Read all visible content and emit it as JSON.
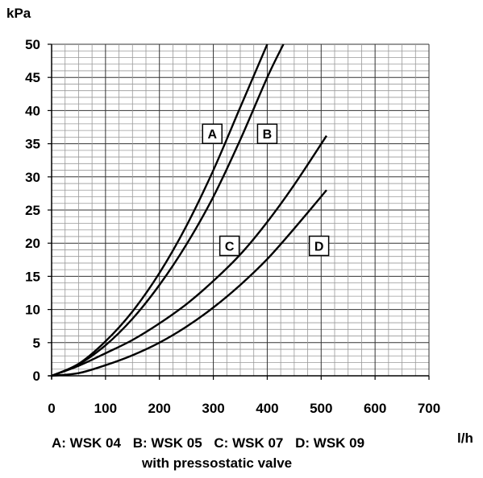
{
  "chart_data": {
    "type": "line",
    "ylabel": "kPa",
    "xlabel": "l/h",
    "xlim": [
      0,
      700
    ],
    "ylim": [
      0,
      50
    ],
    "x_ticks": [
      "0",
      "100",
      "200",
      "300",
      "400",
      "500",
      "600",
      "700"
    ],
    "y_ticks": [
      "0",
      "5",
      "10",
      "15",
      "20",
      "25",
      "30",
      "35",
      "40",
      "45",
      "50"
    ],
    "grid": true,
    "series": [
      {
        "name": "A",
        "x": [
          0,
          50,
          100,
          150,
          200,
          250,
          300,
          350,
          400
        ],
        "y": [
          0,
          1.8,
          5.2,
          9.7,
          15.5,
          22.6,
          31,
          40.5,
          50
        ]
      },
      {
        "name": "B",
        "x": [
          0,
          50,
          100,
          150,
          200,
          250,
          300,
          350,
          400,
          430
        ],
        "y": [
          0,
          1.7,
          4.6,
          8.6,
          13.7,
          19.8,
          27,
          35.6,
          45,
          50
        ]
      },
      {
        "name": "C",
        "x": [
          0,
          50,
          100,
          150,
          200,
          250,
          300,
          350,
          400,
          450,
          510
        ],
        "y": [
          0,
          1.5,
          3.4,
          5.4,
          7.9,
          10.8,
          14.3,
          18.3,
          23.2,
          28.8,
          36.2
        ]
      },
      {
        "name": "D",
        "x": [
          0,
          50,
          100,
          150,
          200,
          250,
          300,
          350,
          400,
          450,
          510
        ],
        "y": [
          0,
          0.4,
          1.6,
          3.1,
          5,
          7.4,
          10.3,
          13.7,
          17.6,
          22.2,
          28
        ]
      }
    ],
    "box_labels": [
      {
        "text": "A",
        "x": 298,
        "y": 36.5
      },
      {
        "text": "B",
        "x": 400,
        "y": 36.5
      },
      {
        "text": "C",
        "x": 330,
        "y": 19.6
      },
      {
        "text": "D",
        "x": 496,
        "y": 19.6
      }
    ]
  },
  "legend": {
    "a": "A: WSK 04",
    "b": "B: WSK 05",
    "c": "C: WSK 07",
    "d": "D: WSK 09",
    "note": "with pressostatic valve"
  }
}
